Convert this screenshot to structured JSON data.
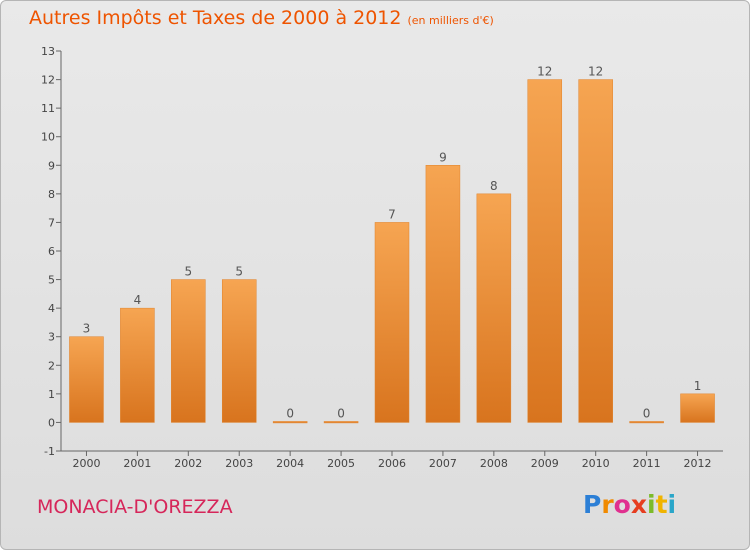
{
  "chart_data": {
    "type": "bar",
    "title": "Autres Impôts et Taxes de 2000 à 2012",
    "subtitle": "(en milliers d'€)",
    "categories": [
      "2000",
      "2001",
      "2002",
      "2003",
      "2004",
      "2005",
      "2006",
      "2007",
      "2008",
      "2009",
      "2010",
      "2011",
      "2012"
    ],
    "values": [
      3,
      4,
      5,
      5,
      0,
      0,
      7,
      9,
      8,
      12,
      12,
      0,
      1
    ],
    "ylim": [
      -1,
      13
    ],
    "yticks": [
      -1,
      0,
      1,
      2,
      3,
      4,
      5,
      6,
      7,
      8,
      9,
      10,
      11,
      12,
      13
    ],
    "grid": false,
    "bar_color": "#f0953c",
    "xlabel": "",
    "ylabel": ""
  },
  "footer": {
    "commune": "MONACIA-D'OREZZA",
    "logo_letters": [
      "P",
      "r",
      "o",
      "x",
      "i",
      "t",
      "i"
    ],
    "logo_colors": [
      "#2c7fd6",
      "#f08a00",
      "#e0308f",
      "#e63d1f",
      "#7cbb2a",
      "#f0b400",
      "#2aa6c9"
    ]
  }
}
